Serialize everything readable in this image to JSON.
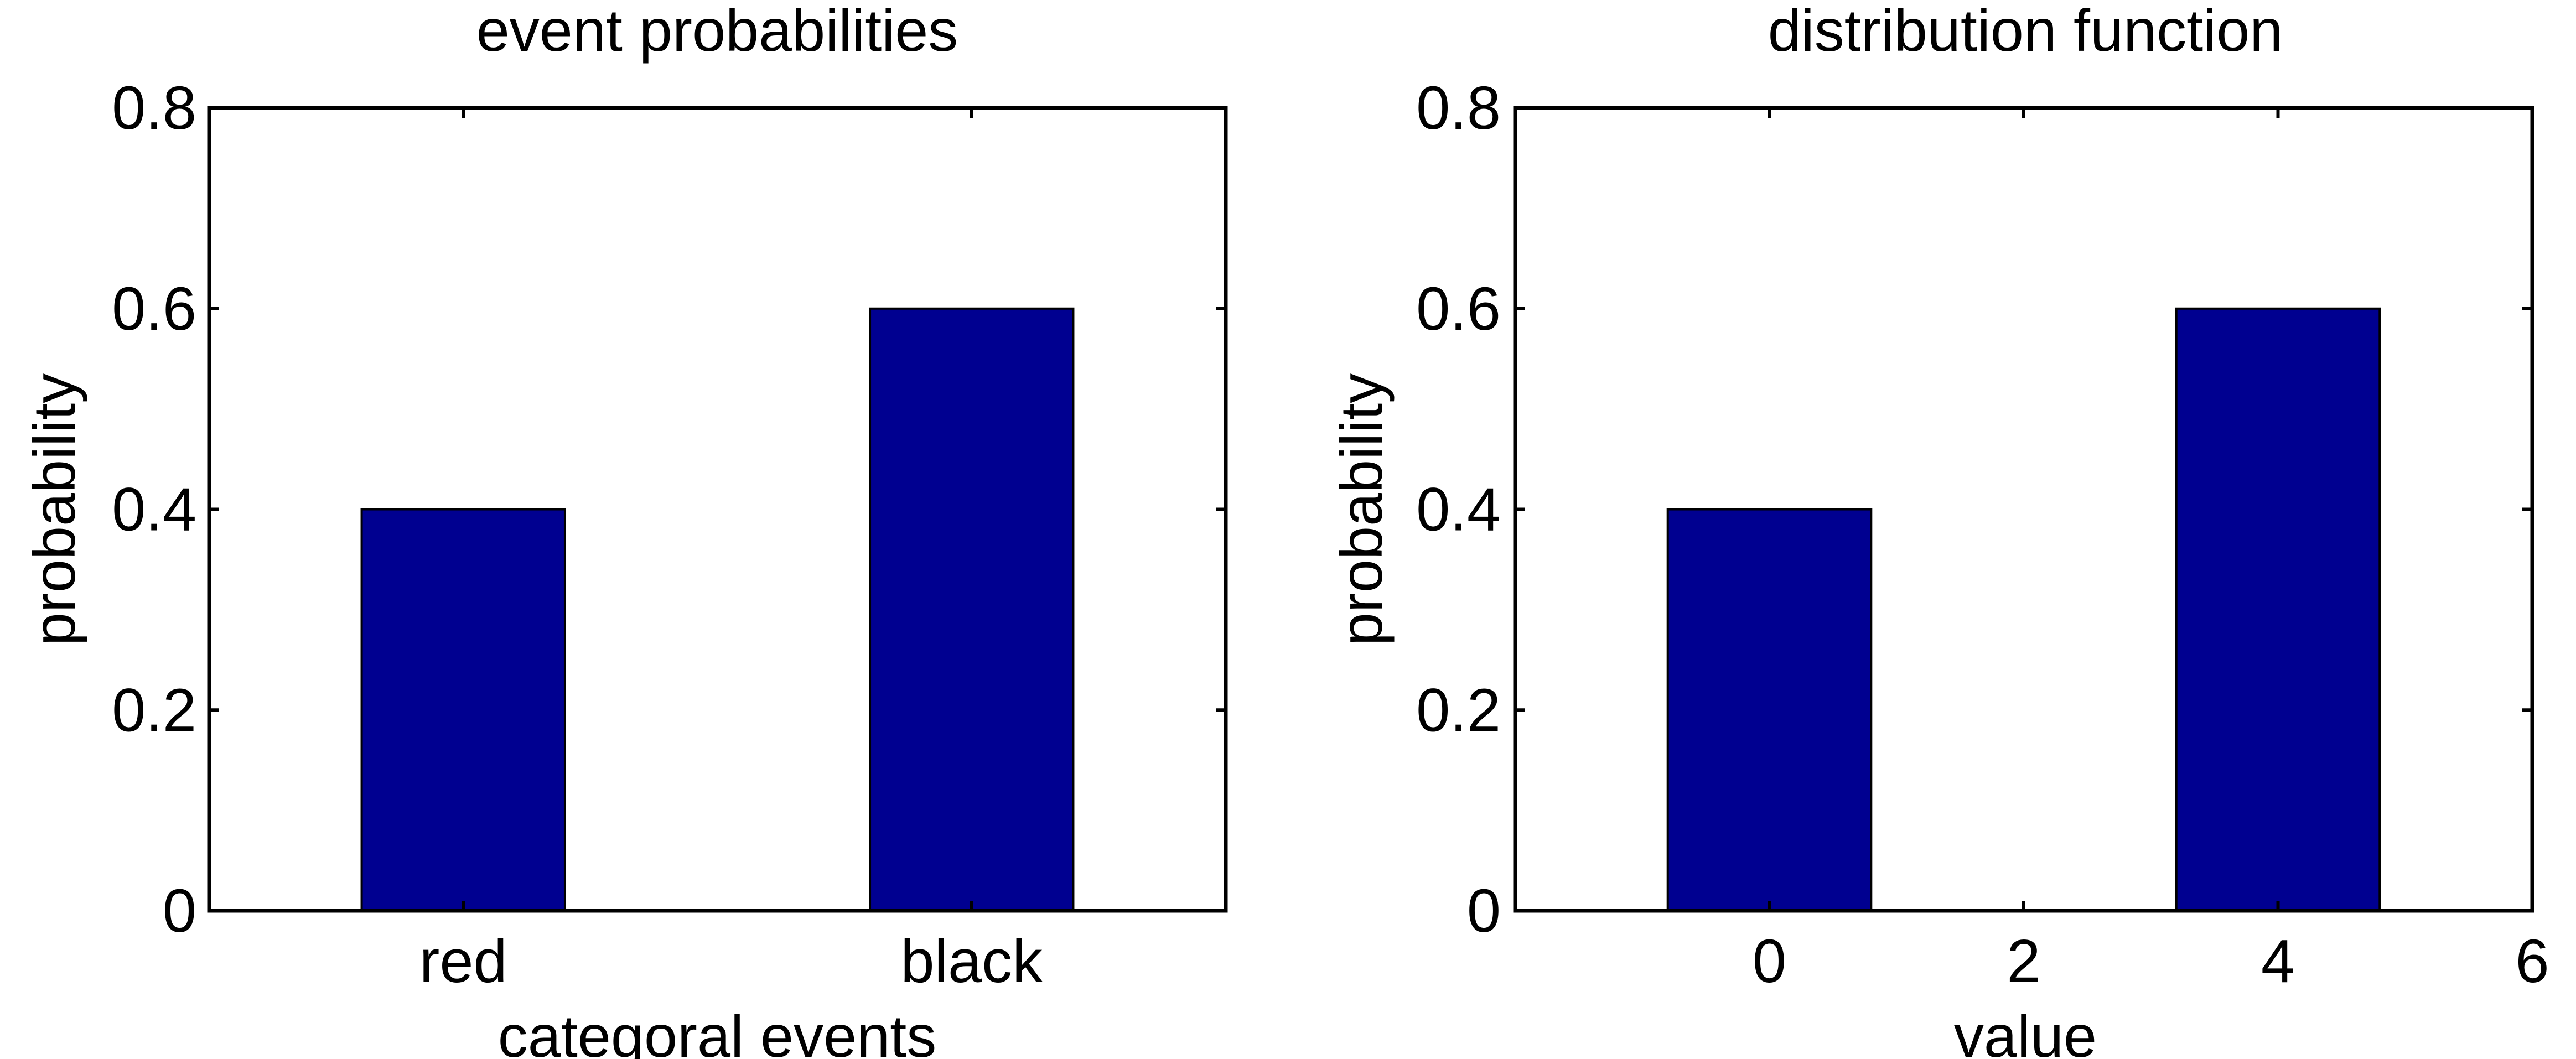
{
  "chart_data": [
    {
      "type": "bar",
      "title": "event probabilities",
      "xlabel": "categoral events",
      "ylabel": "probability",
      "categories": [
        "red",
        "black"
      ],
      "values": [
        0.4,
        0.6
      ],
      "yticks": [
        "0",
        "0.2",
        "0.4",
        "0.6",
        "0.8"
      ],
      "ylim": [
        0,
        0.8
      ],
      "bar_color": "#000090",
      "grid": false
    },
    {
      "type": "bar",
      "title": "distribution function",
      "xlabel": "value",
      "ylabel": "probability",
      "x": [
        0,
        4
      ],
      "values": [
        0.4,
        0.6
      ],
      "xticks": [
        "0",
        "2",
        "4",
        "6"
      ],
      "yticks": [
        "0",
        "0.2",
        "0.4",
        "0.6",
        "0.8"
      ],
      "xlim": [
        -2,
        6
      ],
      "ylim": [
        0,
        0.8
      ],
      "bar_color": "#000090",
      "grid": false
    }
  ]
}
